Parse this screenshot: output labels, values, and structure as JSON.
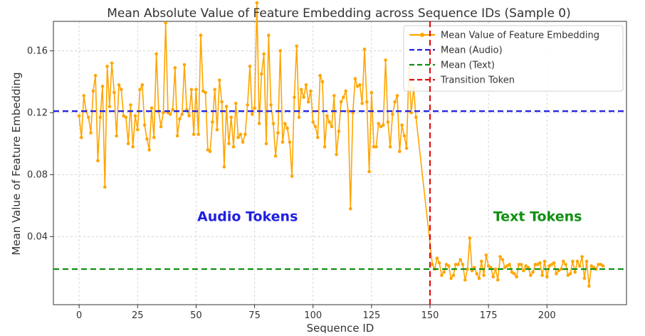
{
  "chart_data": {
    "type": "line",
    "title": "Mean Absolute Value of Feature Embedding across Sequence IDs (Sample 0)",
    "xlabel": "Sequence ID",
    "ylabel": "Mean Value of Feature Embedding",
    "xlim": [
      -11,
      234
    ],
    "ylim": [
      -0.004,
      0.179
    ],
    "x_ticks": [
      0,
      25,
      50,
      75,
      100,
      125,
      150,
      175,
      200
    ],
    "y_ticks": [
      0.04,
      0.08,
      0.12,
      0.16
    ],
    "y_tick_labels": [
      "0.04",
      "0.08",
      "0.12",
      "0.16"
    ],
    "grid": true,
    "legend_position": "top-right",
    "colors": {
      "series": "#FFA500",
      "mean_audio": "#1F1FE0",
      "mean_text": "#109010",
      "transition": "#E01010"
    },
    "series": [
      {
        "name": "Mean Value of Feature Embedding",
        "x_start": 0,
        "values": [
          0.118,
          0.104,
          0.131,
          0.121,
          0.117,
          0.107,
          0.134,
          0.144,
          0.089,
          0.117,
          0.137,
          0.072,
          0.15,
          0.124,
          0.152,
          0.133,
          0.105,
          0.138,
          0.135,
          0.118,
          0.117,
          0.1,
          0.125,
          0.098,
          0.118,
          0.109,
          0.135,
          0.138,
          0.112,
          0.103,
          0.096,
          0.123,
          0.104,
          0.158,
          0.121,
          0.111,
          0.12,
          0.178,
          0.12,
          0.119,
          0.122,
          0.149,
          0.105,
          0.116,
          0.119,
          0.151,
          0.122,
          0.118,
          0.135,
          0.106,
          0.135,
          0.106,
          0.17,
          0.134,
          0.133,
          0.096,
          0.095,
          0.114,
          0.135,
          0.109,
          0.141,
          0.127,
          0.085,
          0.124,
          0.1,
          0.117,
          0.098,
          0.126,
          0.104,
          0.106,
          0.101,
          0.106,
          0.125,
          0.15,
          0.119,
          0.123,
          0.191,
          0.113,
          0.145,
          0.158,
          0.1,
          0.17,
          0.125,
          0.113,
          0.092,
          0.107,
          0.16,
          0.101,
          0.113,
          0.11,
          0.101,
          0.079,
          0.13,
          0.163,
          0.117,
          0.135,
          0.13,
          0.138,
          0.127,
          0.134,
          0.114,
          0.111,
          0.104,
          0.144,
          0.14,
          0.098,
          0.118,
          0.114,
          0.111,
          0.131,
          0.093,
          0.108,
          0.127,
          0.13,
          0.134,
          0.121,
          0.058,
          0.12,
          0.142,
          0.137,
          0.138,
          0.126,
          0.161,
          0.127,
          0.082,
          0.133,
          0.098,
          0.098,
          0.113,
          0.111,
          0.112,
          0.154,
          0.114,
          0.098,
          0.119,
          0.127,
          0.131,
          0.095,
          0.112,
          0.105,
          0.097,
          0.149,
          0.12,
          0.136,
          0.117
        ],
        "x2_start": 151,
        "values2": [
          0.022,
          0.019,
          0.026,
          0.023,
          0.015,
          0.017,
          0.022,
          0.021,
          0.013,
          0.015,
          0.022,
          0.022,
          0.025,
          0.022,
          0.012,
          0.019,
          0.039,
          0.018,
          0.02,
          0.016,
          0.013,
          0.024,
          0.015,
          0.028,
          0.021,
          0.02,
          0.014,
          0.019,
          0.012,
          0.027,
          0.025,
          0.02,
          0.021,
          0.022,
          0.017,
          0.016,
          0.014,
          0.022,
          0.022,
          0.018,
          0.021,
          0.02,
          0.015,
          0.017,
          0.022,
          0.022,
          0.023,
          0.015,
          0.024,
          0.014,
          0.021,
          0.022,
          0.023,
          0.016,
          0.018,
          0.019,
          0.024,
          0.022,
          0.015,
          0.016,
          0.024,
          0.017,
          0.024,
          0.021,
          0.027,
          0.013,
          0.024,
          0.008,
          0.021,
          0.02,
          0.019,
          0.022,
          0.022,
          0.021
        ]
      },
      {
        "name": "Mean (Audio)",
        "value": 0.121
      },
      {
        "name": "Mean (Text)",
        "value": 0.019
      },
      {
        "name": "Transition Token",
        "x": 150
      }
    ],
    "annotations": [
      {
        "text": "Audio Tokens",
        "x": 72,
        "y": 0.05
      },
      {
        "text": "Text Tokens",
        "x": 196,
        "y": 0.05
      }
    ]
  }
}
